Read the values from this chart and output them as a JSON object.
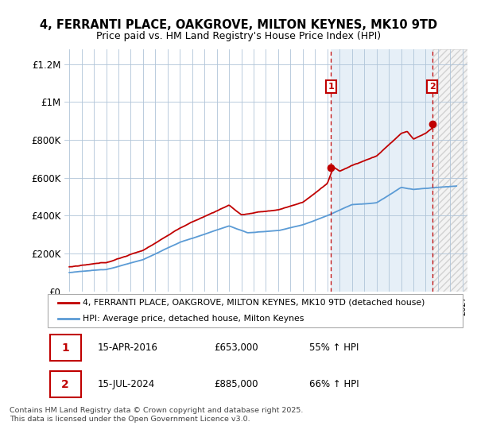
{
  "title1": "4, FERRANTI PLACE, OAKGROVE, MILTON KEYNES, MK10 9TD",
  "title2": "Price paid vs. HM Land Registry's House Price Index (HPI)",
  "ylabel_ticks": [
    "£0",
    "£200K",
    "£400K",
    "£600K",
    "£800K",
    "£1M",
    "£1.2M"
  ],
  "ytick_values": [
    0,
    200000,
    400000,
    600000,
    800000,
    1000000,
    1200000
  ],
  "ylim": [
    0,
    1280000
  ],
  "xlim_left": 1994.6,
  "xlim_right": 2027.4,
  "hpi_color": "#5b9bd5",
  "price_color": "#c00000",
  "shade_start": 2016.29,
  "shade_end": 2024.54,
  "hatch_start": 2024.54,
  "hatch_end": 2027.4,
  "marker1_x": 2016.29,
  "marker1_y": 653000,
  "marker2_x": 2024.54,
  "marker2_y": 885000,
  "marker1_label": "1",
  "marker2_label": "2",
  "marker1_date": "15-APR-2016",
  "marker1_price": "£653,000",
  "marker1_hpi": "55% ↑ HPI",
  "marker2_date": "15-JUL-2024",
  "marker2_price": "£885,000",
  "marker2_hpi": "66% ↑ HPI",
  "legend_label1": "4, FERRANTI PLACE, OAKGROVE, MILTON KEYNES, MK10 9TD (detached house)",
  "legend_label2": "HPI: Average price, detached house, Milton Keynes",
  "footer": "Contains HM Land Registry data © Crown copyright and database right 2025.\nThis data is licensed under the Open Government Licence v3.0.",
  "bg_color": "#dce9f5",
  "plot_bg": "#ffffff",
  "grid_color": "#b0c4d8"
}
